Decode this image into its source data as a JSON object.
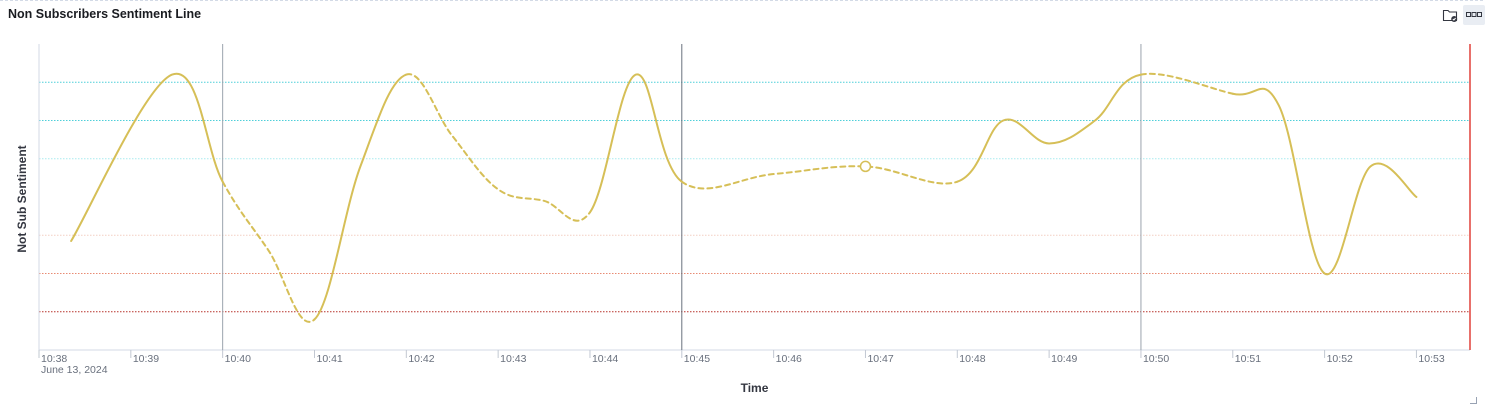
{
  "panel": {
    "title": "Non Subscribers Sentiment Line",
    "icons": {
      "folder": "folder-check-icon",
      "options": "ellipsis-icon"
    }
  },
  "chart_data": {
    "type": "line",
    "xlabel": "Time",
    "ylabel": "Not Sub Sentiment",
    "date_label": "June 13, 2024",
    "x_ticks": [
      "10:38",
      "10:39",
      "10:40",
      "10:41",
      "10:42",
      "10:43",
      "10:44",
      "10:45",
      "10:46",
      "10:47",
      "10:48",
      "10:49",
      "10:50",
      "10:51",
      "10:52",
      "10:53"
    ],
    "x_range": [
      "10:38",
      "10:53:35"
    ],
    "ylim": [
      0,
      8
    ],
    "series": [
      {
        "color": "#d6bf57",
        "points": [
          {
            "x": "10:38:21",
            "y": 2.85
          },
          {
            "x": "10:39:27",
            "y": 7.2
          },
          {
            "x": "10:40:00",
            "y": 4.4
          },
          {
            "x": "10:40:30",
            "y": 2.6
          },
          {
            "x": "10:41:00",
            "y": 0.8
          },
          {
            "x": "10:41:30",
            "y": 4.8
          },
          {
            "x": "10:42:00",
            "y": 7.2
          },
          {
            "x": "10:42:30",
            "y": 5.6
          },
          {
            "x": "10:43:00",
            "y": 4.2
          },
          {
            "x": "10:43:30",
            "y": 3.9
          },
          {
            "x": "10:44:00",
            "y": 3.6
          },
          {
            "x": "10:44:30",
            "y": 7.2
          },
          {
            "x": "10:45:00",
            "y": 4.4
          },
          {
            "x": "10:46:00",
            "y": 4.6
          },
          {
            "x": "10:47:00",
            "y": 4.8
          },
          {
            "x": "10:48:00",
            "y": 4.4
          },
          {
            "x": "10:48:30",
            "y": 6.0
          },
          {
            "x": "10:49:00",
            "y": 5.4
          },
          {
            "x": "10:49:30",
            "y": 6.0
          },
          {
            "x": "10:50:00",
            "y": 7.2
          },
          {
            "x": "10:51:00",
            "y": 6.7
          },
          {
            "x": "10:51:30",
            "y": 6.4
          },
          {
            "x": "10:52:00",
            "y": 2.0
          },
          {
            "x": "10:52:30",
            "y": 4.8
          },
          {
            "x": "10:53:00",
            "y": 4.0
          }
        ],
        "dashed_intervals": [
          [
            2,
            4
          ],
          [
            6,
            10
          ],
          [
            12,
            15
          ],
          [
            19,
            20
          ]
        ],
        "marked_point_index": 14
      }
    ],
    "reference_lines": [
      {
        "y": 7.0,
        "color": "#4ecfd9",
        "style": "dotted"
      },
      {
        "y": 6.0,
        "color": "#4ecfd9",
        "style": "dotted"
      },
      {
        "y": 5.0,
        "color": "#a9ecef",
        "style": "dotted"
      },
      {
        "y": 3.0,
        "color": "#f3cfc3",
        "style": "dotted"
      },
      {
        "y": 2.0,
        "color": "#e88b73",
        "style": "dotted"
      },
      {
        "y": 1.0,
        "color": "#b7322b",
        "style": "dotted"
      }
    ],
    "vertical_markers": [
      {
        "x": "10:40:00",
        "color": "#9ba3ad"
      },
      {
        "x": "10:45:00",
        "color": "#6a717d"
      },
      {
        "x": "10:50:00",
        "color": "#9ba3ad"
      },
      {
        "x": "10:53:35",
        "color": "#e0403a"
      }
    ],
    "grid": false,
    "legend": "none"
  }
}
